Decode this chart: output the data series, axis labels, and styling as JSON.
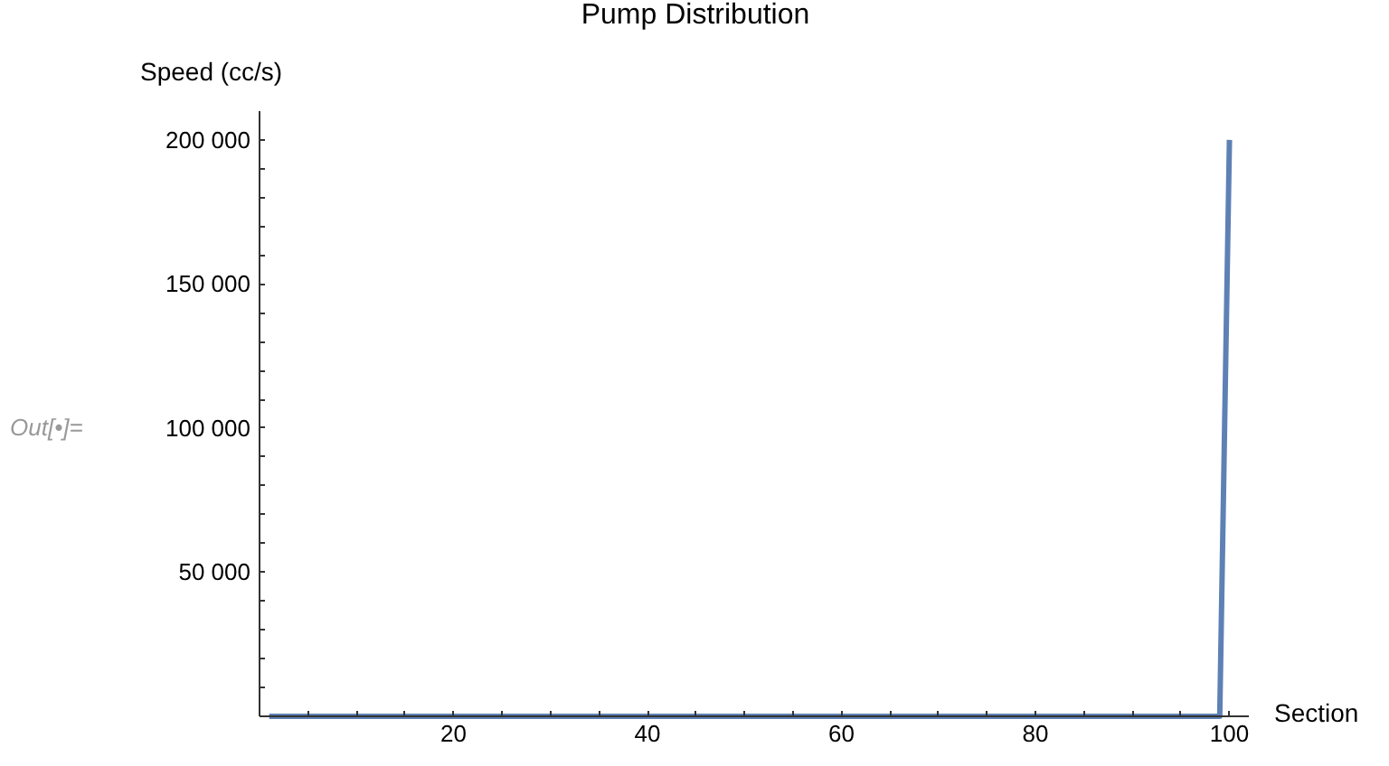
{
  "chart_data": {
    "type": "line",
    "title": "Pump Distribution",
    "xlabel": "Section",
    "ylabel": "Speed (cc/s)",
    "annotations": [
      "Out[•]="
    ],
    "x": [
      1,
      99,
      100
    ],
    "series": [
      {
        "color": "#5e81b5",
        "values": [
          0,
          0,
          200000
        ]
      }
    ],
    "xlim": [
      0,
      102
    ],
    "ylim": [
      0,
      210000
    ],
    "xticks": [
      {
        "value": 5,
        "label": null
      },
      {
        "value": 10,
        "label": null
      },
      {
        "value": 15,
        "label": null
      },
      20,
      {
        "value": 25,
        "label": null
      },
      {
        "value": 30,
        "label": null
      },
      {
        "value": 35,
        "label": null
      },
      40,
      {
        "value": 45,
        "label": null
      },
      {
        "value": 50,
        "label": null
      },
      {
        "value": 55,
        "label": null
      },
      60,
      {
        "value": 65,
        "label": null
      },
      {
        "value": 70,
        "label": null
      },
      {
        "value": 75,
        "label": null
      },
      80,
      {
        "value": 85,
        "label": null
      },
      {
        "value": 90,
        "label": null
      },
      {
        "value": 95,
        "label": null
      },
      100
    ],
    "yticks": [
      {
        "value": 10000,
        "label": null
      },
      {
        "value": 20000,
        "label": null
      },
      {
        "value": 30000,
        "label": null
      },
      {
        "value": 40000,
        "label": null
      },
      {
        "value": 50000,
        "label": "50 000"
      },
      {
        "value": 60000,
        "label": null
      },
      {
        "value": 70000,
        "label": null
      },
      {
        "value": 80000,
        "label": null
      },
      {
        "value": 90000,
        "label": null
      },
      {
        "value": 100000,
        "label": "100 000"
      },
      {
        "value": 110000,
        "label": null
      },
      {
        "value": 120000,
        "label": null
      },
      {
        "value": 130000,
        "label": null
      },
      {
        "value": 140000,
        "label": null
      },
      {
        "value": 150000,
        "label": "150 000"
      },
      {
        "value": 160000,
        "label": null
      },
      {
        "value": 170000,
        "label": null
      },
      {
        "value": 180000,
        "label": null
      },
      {
        "value": 190000,
        "label": null
      },
      {
        "value": 200000,
        "label": "200 000"
      }
    ],
    "grid": false,
    "marker": "none",
    "line_style": "solid"
  }
}
